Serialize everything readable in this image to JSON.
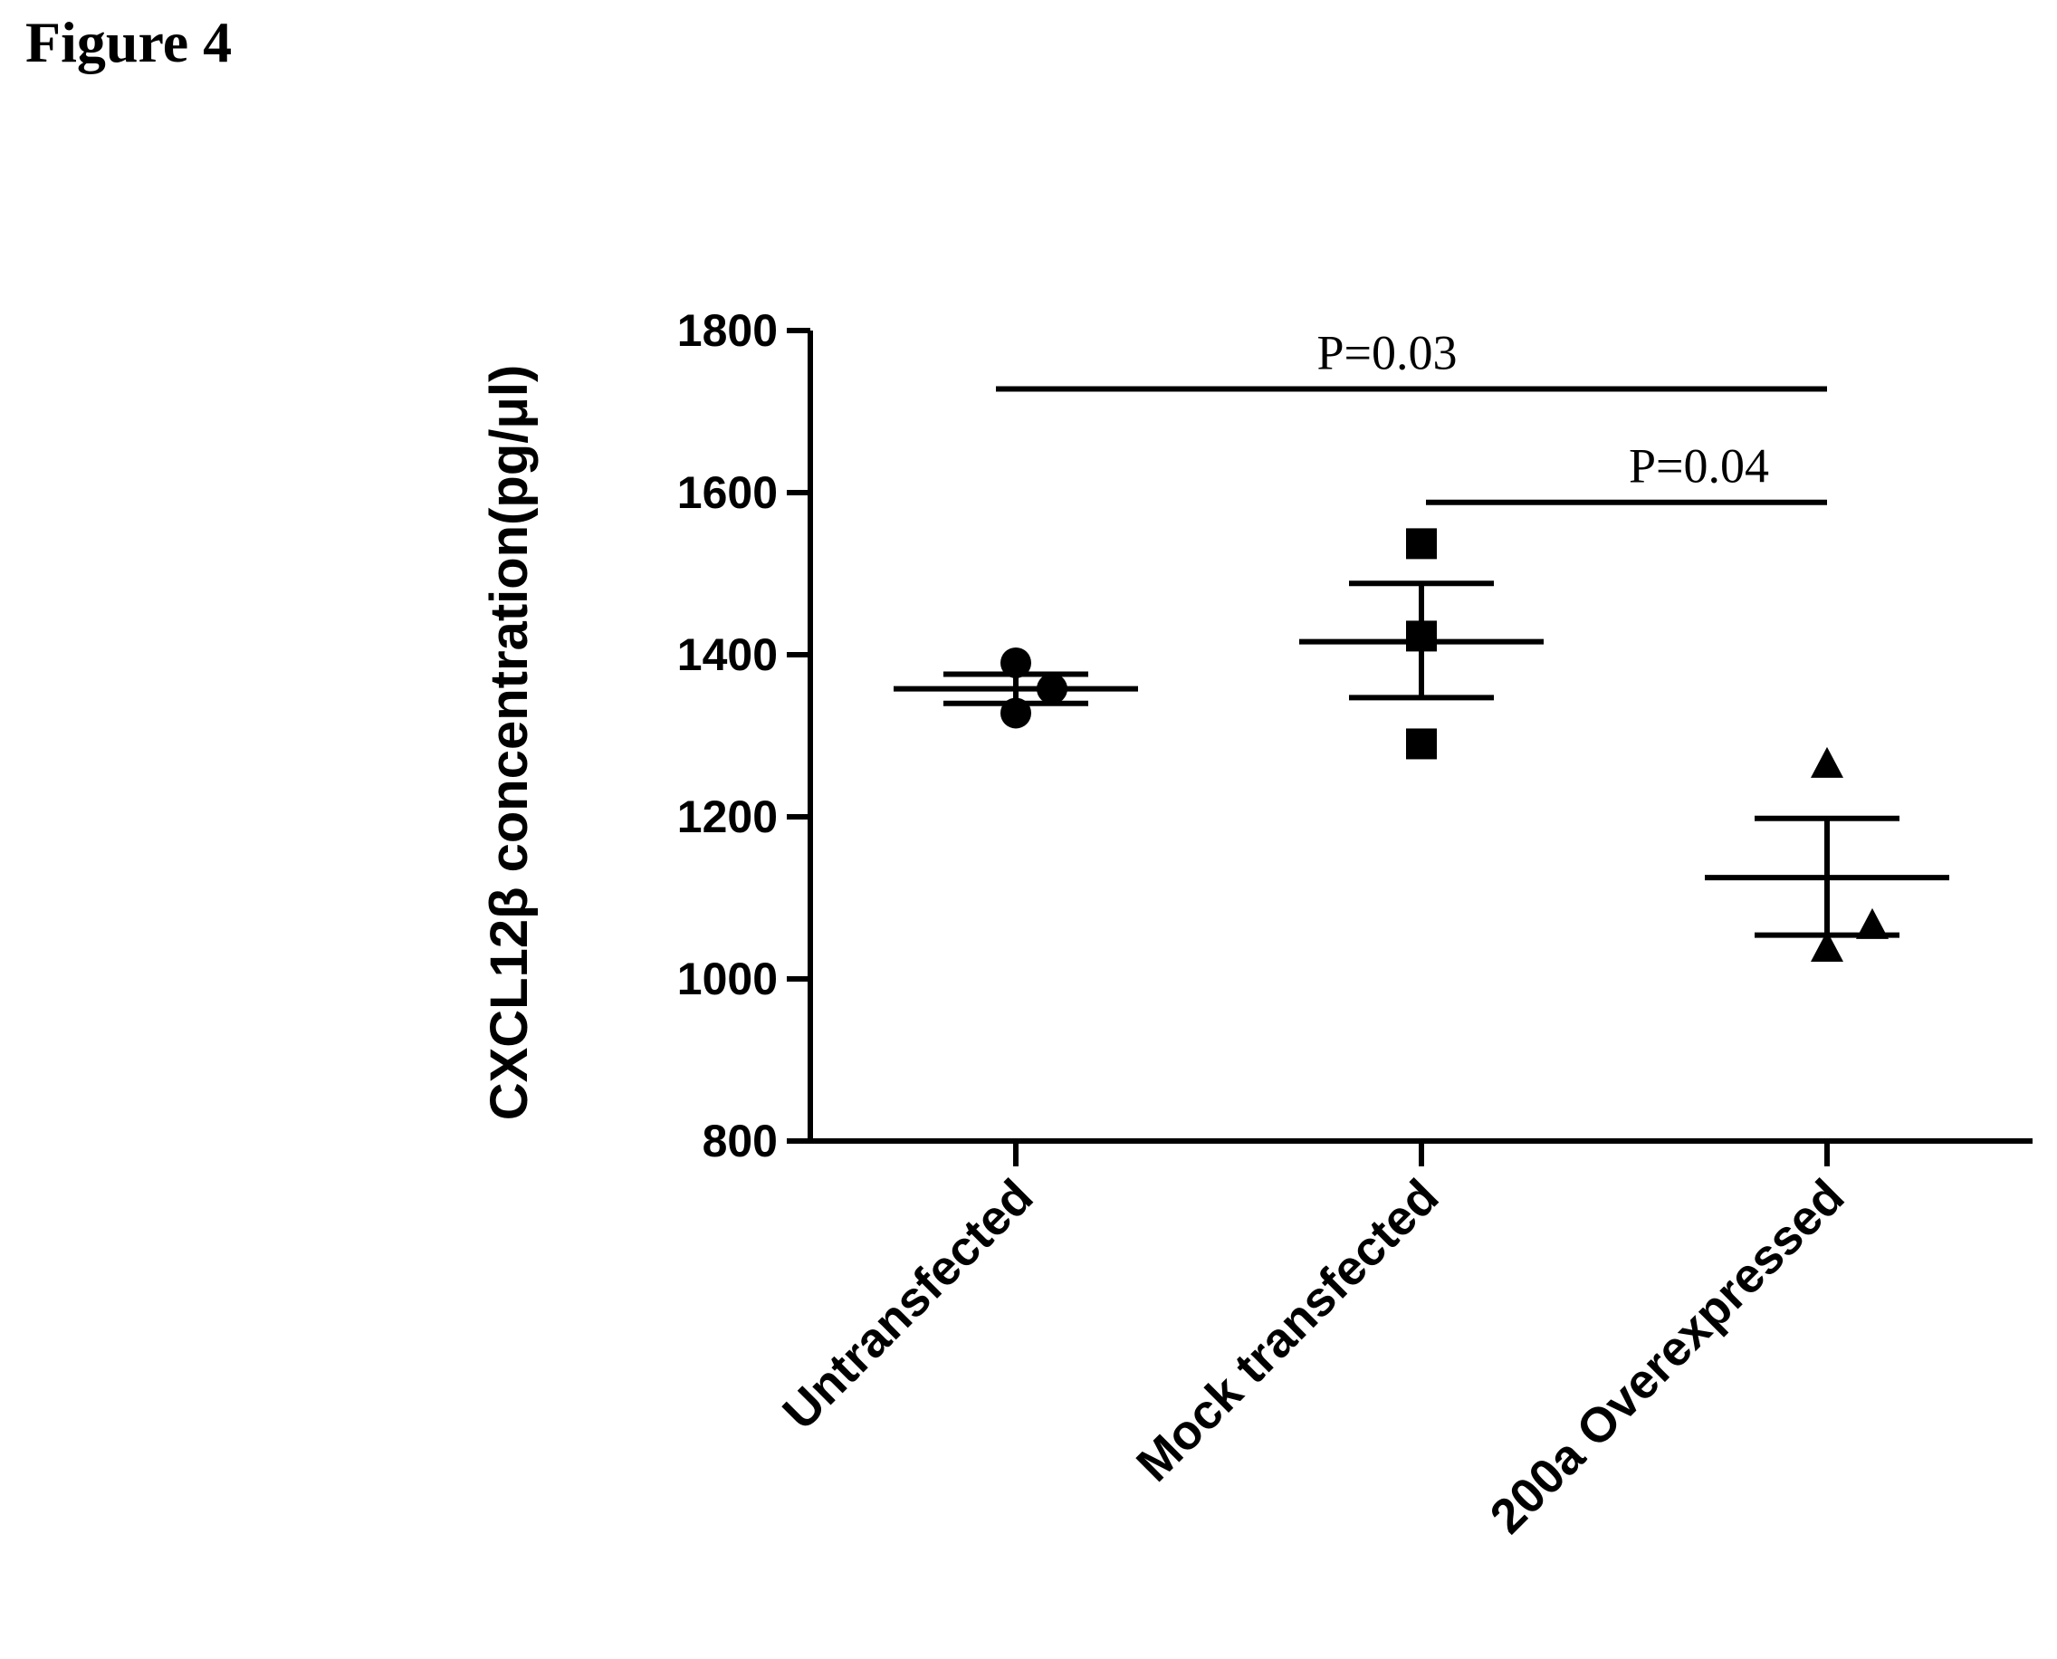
{
  "figure_label": "Figure 4",
  "chart_data": {
    "type": "scatter",
    "title": "",
    "xlabel": "",
    "ylabel": "CXCL12β concentration(pg/μl)",
    "ylim": [
      800,
      1800
    ],
    "yticks": [
      800,
      1000,
      1200,
      1400,
      1600,
      1800
    ],
    "grid": false,
    "categories": [
      "Untransfected",
      "Mock transfected",
      "200a Overexpressed"
    ],
    "series": [
      {
        "name": "Untransfected",
        "marker": "circle",
        "values": [
          1390,
          1328,
          1358
        ],
        "mean": 1358,
        "sem_low": 1340,
        "sem_high": 1376
      },
      {
        "name": "Mock transfected",
        "marker": "square",
        "values": [
          1537,
          1290,
          1423
        ],
        "mean": 1416,
        "sem_low": 1347,
        "sem_high": 1488
      },
      {
        "name": "200a Overexpressed",
        "marker": "triangle",
        "values": [
          1265,
          1038,
          1066
        ],
        "mean": 1125,
        "sem_low": 1054,
        "sem_high": 1198
      }
    ],
    "comparisons": [
      {
        "label": "P=0.03",
        "from": 0,
        "to": 2,
        "y": 1728
      },
      {
        "label": "P=0.04",
        "from": 1,
        "to": 2,
        "y": 1588
      }
    ]
  }
}
